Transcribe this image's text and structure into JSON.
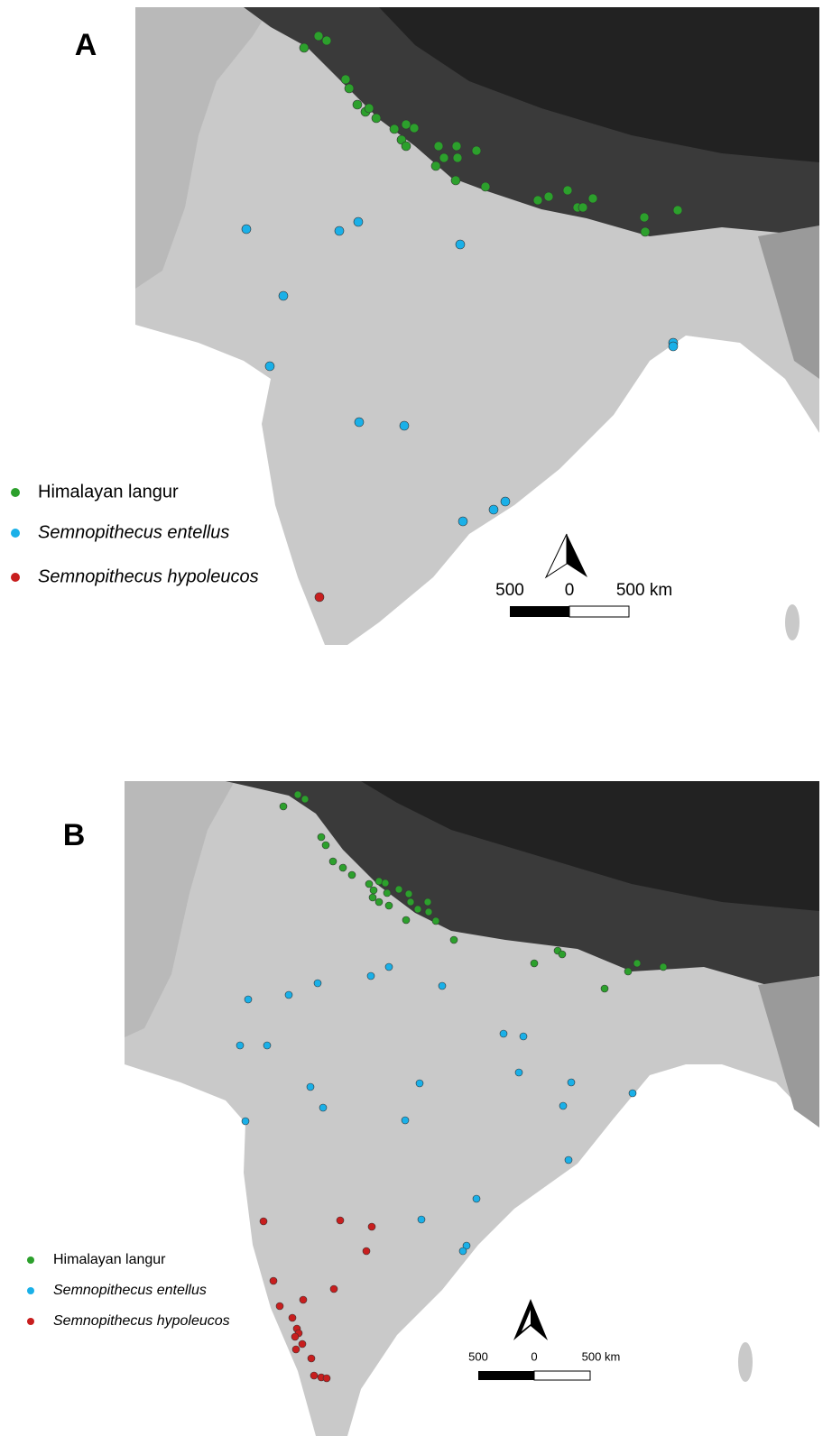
{
  "panels": [
    {
      "label": "A",
      "legend": [
        "Himalayan langur",
        "Semnopithecus entellus",
        "Semnopithecus hypoleucos"
      ],
      "scale": {
        "left": "500",
        "middle": "0",
        "right": "500 km"
      }
    },
    {
      "label": "B",
      "legend": [
        "Himalayan langur",
        "Semnopithecus entellus",
        "Semnopithecus hypoleucos"
      ],
      "scale": {
        "left": "500",
        "middle": "0",
        "right": "500 km"
      }
    }
  ]
}
